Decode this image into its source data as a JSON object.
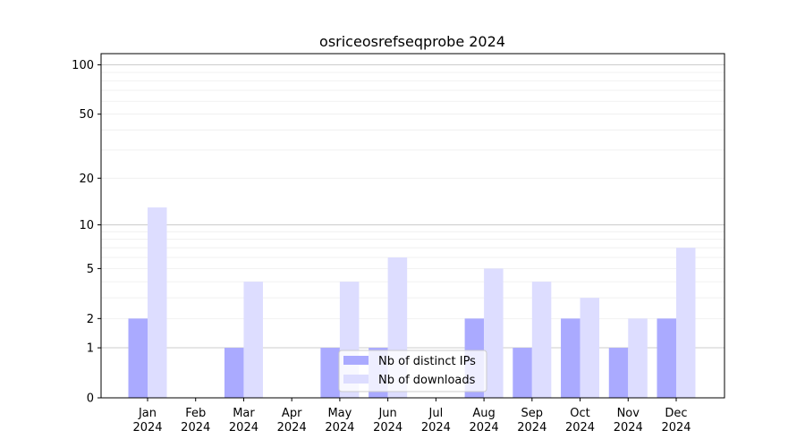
{
  "chart_data": {
    "type": "bar",
    "title": "osriceosrefseqprobe 2024",
    "xlabel": "",
    "ylabel": "",
    "yscale": "symlog",
    "ylim": [
      0,
      117
    ],
    "yticks": [
      0,
      1,
      2,
      5,
      10,
      20,
      50,
      100
    ],
    "grid": true,
    "legend_placement": "bottom-center",
    "categories": [
      "Jan\n2024",
      "Feb\n2024",
      "Mar\n2024",
      "Apr\n2024",
      "May\n2024",
      "Jun\n2024",
      "Jul\n2024",
      "Aug\n2024",
      "Sep\n2024",
      "Oct\n2024",
      "Nov\n2024",
      "Dec\n2024"
    ],
    "series": [
      {
        "name": "Nb of distinct IPs",
        "color": "#aaaaff",
        "values": [
          2,
          0,
          1,
          0,
          1,
          1,
          0,
          2,
          1,
          2,
          1,
          2
        ]
      },
      {
        "name": "Nb of downloads",
        "color": "#ddddff",
        "values": [
          13,
          0,
          4,
          0,
          4,
          6,
          0,
          5,
          4,
          3,
          2,
          7
        ]
      }
    ]
  }
}
